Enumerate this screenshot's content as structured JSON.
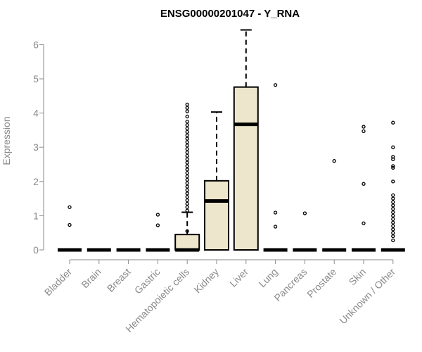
{
  "chart_data": {
    "type": "boxplot",
    "title": "ENSG00000201047 - Y_RNA",
    "xlabel": "",
    "ylabel": "Expression",
    "ylim": [
      0,
      6.5
    ],
    "yticks": [
      0,
      1,
      2,
      3,
      4,
      5,
      6
    ],
    "grid": false,
    "legend": "none",
    "colors": {
      "box_fill": "#ede6cc",
      "stroke": "#000000",
      "axis": "#8a8a8a"
    },
    "categories": [
      "Bladder",
      "Brain",
      "Breast",
      "Gastric",
      "Hematopoietic cells",
      "Kidney",
      "Liver",
      "Lung",
      "Pancreas",
      "Prostate",
      "Skin",
      "Unknown / Other"
    ],
    "boxes": [
      {
        "category": "Bladder",
        "q1": 0,
        "median": 0,
        "q3": 0,
        "whisker_low": 0,
        "whisker_high": 0,
        "outliers": [
          0.73,
          1.25
        ]
      },
      {
        "category": "Brain",
        "q1": 0,
        "median": 0,
        "q3": 0,
        "whisker_low": 0,
        "whisker_high": 0,
        "outliers": []
      },
      {
        "category": "Breast",
        "q1": 0,
        "median": 0,
        "q3": 0,
        "whisker_low": 0,
        "whisker_high": 0,
        "outliers": []
      },
      {
        "category": "Gastric",
        "q1": 0,
        "median": 0,
        "q3": 0,
        "whisker_low": 0,
        "whisker_high": 0,
        "outliers": [
          0.72,
          1.03
        ]
      },
      {
        "category": "Hematopoietic cells",
        "q1": 0,
        "median": 0,
        "q3": 0.45,
        "whisker_low": 0,
        "whisker_high": 1.1,
        "outliers": [
          0.55,
          1.15,
          1.25,
          1.35,
          1.45,
          1.55,
          1.65,
          1.75,
          1.85,
          1.95,
          2.05,
          2.15,
          2.25,
          2.35,
          2.45,
          2.55,
          2.65,
          2.75,
          2.85,
          2.95,
          3.05,
          3.15,
          3.25,
          3.35,
          3.45,
          3.55,
          3.65,
          3.75,
          3.9,
          4.05,
          4.15,
          4.25
        ]
      },
      {
        "category": "Kidney",
        "q1": 0,
        "median": 1.43,
        "q3": 2.02,
        "whisker_low": 0,
        "whisker_high": 4.03,
        "outliers": []
      },
      {
        "category": "Liver",
        "q1": 0,
        "median": 3.67,
        "q3": 4.76,
        "whisker_low": 0,
        "whisker_high": 6.43,
        "outliers": []
      },
      {
        "category": "Lung",
        "q1": 0,
        "median": 0,
        "q3": 0,
        "whisker_low": 0,
        "whisker_high": 0,
        "outliers": [
          0.68,
          1.09,
          4.82
        ]
      },
      {
        "category": "Pancreas",
        "q1": 0,
        "median": 0,
        "q3": 0,
        "whisker_low": 0,
        "whisker_high": 0,
        "outliers": [
          1.07
        ]
      },
      {
        "category": "Prostate",
        "q1": 0,
        "median": 0,
        "q3": 0,
        "whisker_low": 0,
        "whisker_high": 0,
        "outliers": [
          2.6
        ]
      },
      {
        "category": "Skin",
        "q1": 0,
        "median": 0,
        "q3": 0,
        "whisker_low": 0,
        "whisker_high": 0,
        "outliers": [
          0.78,
          1.93,
          3.47,
          3.6
        ]
      },
      {
        "category": "Unknown / Other",
        "q1": 0,
        "median": 0,
        "q3": 0,
        "whisker_low": 0,
        "whisker_high": 0,
        "outliers": [
          0.28,
          0.4,
          0.5,
          0.6,
          0.7,
          0.8,
          0.9,
          1.0,
          1.1,
          1.2,
          1.3,
          1.4,
          1.5,
          1.6,
          2.0,
          2.4,
          2.45,
          2.65,
          2.72,
          3.0,
          3.72
        ]
      }
    ]
  }
}
